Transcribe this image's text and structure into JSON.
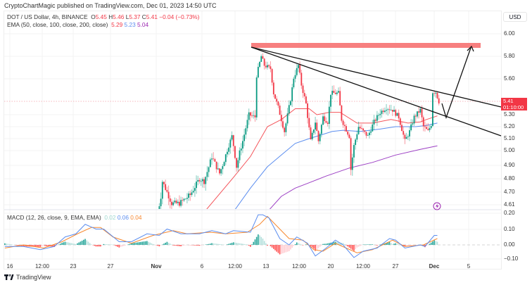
{
  "header": {
    "published": "CryptoChartMagic published on TradingView.com, Dec 01, 2023 14:50 UTC"
  },
  "legend": {
    "symbol": "DOT / US Dollar, 4h, BINANCE",
    "o_label": "O",
    "o": "5.45",
    "h_label": "H",
    "h": "5.46",
    "l_label": "L",
    "l": "5.37",
    "c_label": "C",
    "c": "5.41",
    "change": "−0.04 (−0.73%)",
    "ema_label": "EMA (50, close, 100, close, 200, close)",
    "ema50": "5.29",
    "ema100": "5.23",
    "ema200": "5.04",
    "macd_label": "MACD (12, 26, close, 9, EMA, EMA)",
    "hist": "0.02",
    "macd": "0.06",
    "signal": "0.04"
  },
  "price_axis": {
    "currency": "USD",
    "ticks": [
      "6.00",
      "5.80",
      "5.60",
      "5.30",
      "5.20",
      "5.10",
      "5.00",
      "4.90",
      "4.80",
      "4.70",
      "4.61"
    ],
    "last_price": "5.41",
    "countdown": "01:10:00"
  },
  "macd_axis": {
    "ticks": [
      "0.20",
      "0.10",
      "0.00",
      "−0.10"
    ]
  },
  "time_axis": {
    "ticks": [
      "16",
      "12:00",
      "23",
      "27",
      "Nov",
      "6",
      "12:00",
      "13",
      "12:00",
      "20",
      "12:00",
      "27",
      "Dec",
      "5"
    ]
  },
  "brand": {
    "name": "TradingView"
  },
  "colors": {
    "up": "#089981",
    "down": "#f23645",
    "ema50": "#f4545a",
    "ema100": "#5b8def",
    "ema200": "#9c3fc4",
    "macd": "#5b8def",
    "signal": "#f7882f",
    "zone": "#f77f7f"
  },
  "icons": {
    "lightning": "lightning-icon",
    "logo": "tradingview-logo"
  },
  "chart_data": {
    "type": "candlestick",
    "interval": "4h",
    "symbol": "DOTUSD",
    "ylim": [
      4.61,
      6.0
    ],
    "close_path": [
      [
        "11-01 04",
        4.55
      ],
      [
        "11-01 12",
        4.67
      ],
      [
        "11-01 16",
        4.78
      ],
      [
        "11-02 16",
        4.62
      ],
      [
        "11-03 12",
        4.62
      ],
      [
        "11-04 16",
        4.68
      ],
      [
        "11-05 16",
        4.8
      ],
      [
        "11-06 04",
        4.78
      ],
      [
        "11-07 00",
        4.96
      ],
      [
        "11-07 20",
        4.84
      ],
      [
        "11-08 12",
        4.97
      ],
      [
        "11-09 04",
        5.12
      ],
      [
        "11-09 16",
        4.89
      ],
      [
        "11-10 08",
        5.08
      ],
      [
        "11-11 00",
        5.3
      ],
      [
        "11-11 16",
        5.28
      ],
      [
        "11-11 20",
        5.63
      ],
      [
        "11-12 08",
        5.8
      ],
      [
        "11-12 16",
        5.72
      ],
      [
        "11-13 08",
        5.69
      ],
      [
        "11-13 16",
        5.48
      ],
      [
        "11-14 04",
        5.36
      ],
      [
        "11-14 20",
        5.16
      ],
      [
        "11-15 12",
        5.43
      ],
      [
        "11-15 20",
        5.61
      ],
      [
        "11-16 08",
        5.72
      ],
      [
        "11-16 16",
        5.55
      ],
      [
        "11-17 04",
        5.39
      ],
      [
        "11-17 16",
        5.08
      ],
      [
        "11-18 04",
        5.24
      ],
      [
        "11-18 12",
        5.08
      ],
      [
        "11-19 00",
        5.28
      ],
      [
        "11-19 12",
        5.24
      ],
      [
        "11-19 20",
        5.48
      ],
      [
        "11-20 16",
        5.48
      ],
      [
        "11-21 00",
        5.26
      ],
      [
        "11-21 20",
        5.12
      ],
      [
        "11-22 00",
        4.87
      ],
      [
        "11-22 08",
        5.04
      ],
      [
        "11-22 20",
        5.2
      ],
      [
        "11-23 08",
        5.16
      ],
      [
        "11-23 20",
        5.12
      ],
      [
        "11-24 12",
        5.24
      ],
      [
        "11-25 04",
        5.32
      ],
      [
        "11-25 20",
        5.36
      ],
      [
        "11-26 12",
        5.34
      ],
      [
        "11-27 04",
        5.28
      ],
      [
        "11-27 20",
        5.08
      ],
      [
        "11-28 08",
        5.16
      ],
      [
        "11-28 20",
        5.28
      ],
      [
        "11-29 12",
        5.34
      ],
      [
        "11-29 20",
        5.2
      ],
      [
        "11-30 08",
        5.16
      ],
      [
        "11-30 16",
        5.22
      ],
      [
        "11-30 20",
        5.49
      ],
      [
        "12-01 04",
        5.49
      ],
      [
        "12-01 08",
        5.45
      ],
      [
        "12-01 12",
        5.41
      ]
    ],
    "ema50": [
      [
        "11-06 08",
        4.57
      ],
      [
        "11-09 08",
        4.81
      ],
      [
        "11-11 04",
        4.96
      ],
      [
        "11-13 00",
        5.2
      ],
      [
        "11-14 12",
        5.26
      ],
      [
        "11-16 00",
        5.35
      ],
      [
        "11-17 12",
        5.35
      ],
      [
        "11-18 08",
        5.3
      ],
      [
        "11-19 16",
        5.32
      ],
      [
        "11-20 20",
        5.32
      ],
      [
        "11-22 16",
        5.23
      ],
      [
        "11-24 08",
        5.23
      ],
      [
        "11-26 08",
        5.26
      ],
      [
        "11-28 04",
        5.23
      ],
      [
        "11-29 12",
        5.24
      ],
      [
        "11-30 04",
        5.26
      ],
      [
        "12-01 08",
        5.29
      ]
    ],
    "ema100": [
      [
        "11-09 08",
        4.56
      ],
      [
        "11-11 04",
        4.73
      ],
      [
        "11-13 00",
        4.89
      ],
      [
        "11-14 12",
        4.97
      ],
      [
        "11-16 00",
        5.06
      ],
      [
        "11-17 12",
        5.1
      ],
      [
        "11-20 00",
        5.16
      ],
      [
        "11-21 04",
        5.17
      ],
      [
        "11-23 00",
        5.16
      ],
      [
        "11-25 04",
        5.18
      ],
      [
        "11-26 20",
        5.2
      ],
      [
        "11-29 00",
        5.2
      ],
      [
        "11-30 04",
        5.21
      ],
      [
        "12-01 08",
        5.23
      ]
    ],
    "ema200": [
      [
        "11-13 00",
        4.56
      ],
      [
        "11-14 12",
        4.67
      ],
      [
        "11-16 00",
        4.73
      ],
      [
        "11-17 12",
        4.77
      ],
      [
        "11-19 08",
        4.82
      ],
      [
        "11-21 20",
        4.88
      ],
      [
        "11-24 08",
        4.92
      ],
      [
        "11-26 20",
        4.97
      ],
      [
        "11-29 12",
        5.01
      ],
      [
        "12-01 08",
        5.04
      ]
    ],
    "macd_line": [
      [
        "10-15 16",
        -0.01
      ],
      [
        "10-17 16",
        -0.01
      ],
      [
        "10-19 12",
        -0.03
      ],
      [
        "10-21 00",
        -0.01
      ],
      [
        "10-22 04",
        0.05
      ],
      [
        "10-23 08",
        0.07
      ],
      [
        "10-24 08",
        0.13
      ],
      [
        "10-25 12",
        0.1
      ],
      [
        "10-26 08",
        0.1
      ],
      [
        "10-28 00",
        0.02
      ],
      [
        "10-29 08",
        0.02
      ],
      [
        "10-31 00",
        0.07
      ],
      [
        "11-01 08",
        0.06
      ],
      [
        "11-02 04",
        0.1
      ],
      [
        "11-03 16",
        0.07
      ],
      [
        "11-05 16",
        0.07
      ],
      [
        "11-07 00",
        0.09
      ],
      [
        "11-08 12",
        0.07
      ],
      [
        "11-09 08",
        0.09
      ],
      [
        "11-11 04",
        0.08
      ],
      [
        "11-12 00",
        0.19
      ],
      [
        "11-12 12",
        0.19
      ],
      [
        "11-13 04",
        0.17
      ],
      [
        "11-14 08",
        0.04
      ],
      [
        "11-15 08",
        0.0
      ],
      [
        "11-16 04",
        0.05
      ],
      [
        "11-17 08",
        0.01
      ],
      [
        "11-18 04",
        -0.07
      ],
      [
        "11-19 08",
        -0.02
      ],
      [
        "11-20 08",
        0.03
      ],
      [
        "11-21 04",
        0.0
      ],
      [
        "11-22 08",
        -0.08
      ],
      [
        "11-23 08",
        -0.04
      ],
      [
        "11-24 20",
        -0.02
      ],
      [
        "11-26 04",
        0.04
      ],
      [
        "11-26 20",
        0.03
      ],
      [
        "11-27 20",
        -0.02
      ],
      [
        "11-29 12",
        0.0
      ],
      [
        "11-30 00",
        -0.01
      ],
      [
        "12-01 00",
        0.06
      ],
      [
        "12-01 08",
        0.06
      ]
    ],
    "signal_line": [
      [
        "10-15 16",
        -0.02
      ],
      [
        "10-17 16",
        0.0
      ],
      [
        "10-19 20",
        -0.02
      ],
      [
        "10-21 20",
        0.02
      ],
      [
        "10-23 12",
        0.07
      ],
      [
        "10-25 00",
        0.11
      ],
      [
        "10-26 00",
        0.11
      ],
      [
        "10-27 08",
        0.05
      ],
      [
        "10-29 08",
        0.01
      ],
      [
        "10-31 16",
        0.06
      ],
      [
        "11-02 20",
        0.09
      ],
      [
        "11-04 08",
        0.07
      ],
      [
        "11-06 20",
        0.08
      ],
      [
        "11-08 12",
        0.07
      ],
      [
        "11-10 20",
        0.08
      ],
      [
        "11-12 04",
        0.13
      ],
      [
        "11-13 00",
        0.18
      ],
      [
        "11-14 00",
        0.12
      ],
      [
        "11-15 08",
        0.04
      ],
      [
        "11-16 20",
        0.03
      ],
      [
        "11-18 00",
        -0.03
      ],
      [
        "11-19 00",
        -0.04
      ],
      [
        "11-20 08",
        0.01
      ],
      [
        "11-21 12",
        -0.02
      ],
      [
        "11-22 16",
        -0.05
      ],
      [
        "11-24 08",
        -0.03
      ],
      [
        "11-26 12",
        0.03
      ],
      [
        "11-27 20",
        -0.01
      ],
      [
        "11-29 20",
        0.0
      ],
      [
        "12-01 08",
        0.04
      ]
    ],
    "macd_ylim": [
      -0.1,
      0.2
    ],
    "resistance_zone": [
      5.88,
      5.92
    ]
  }
}
